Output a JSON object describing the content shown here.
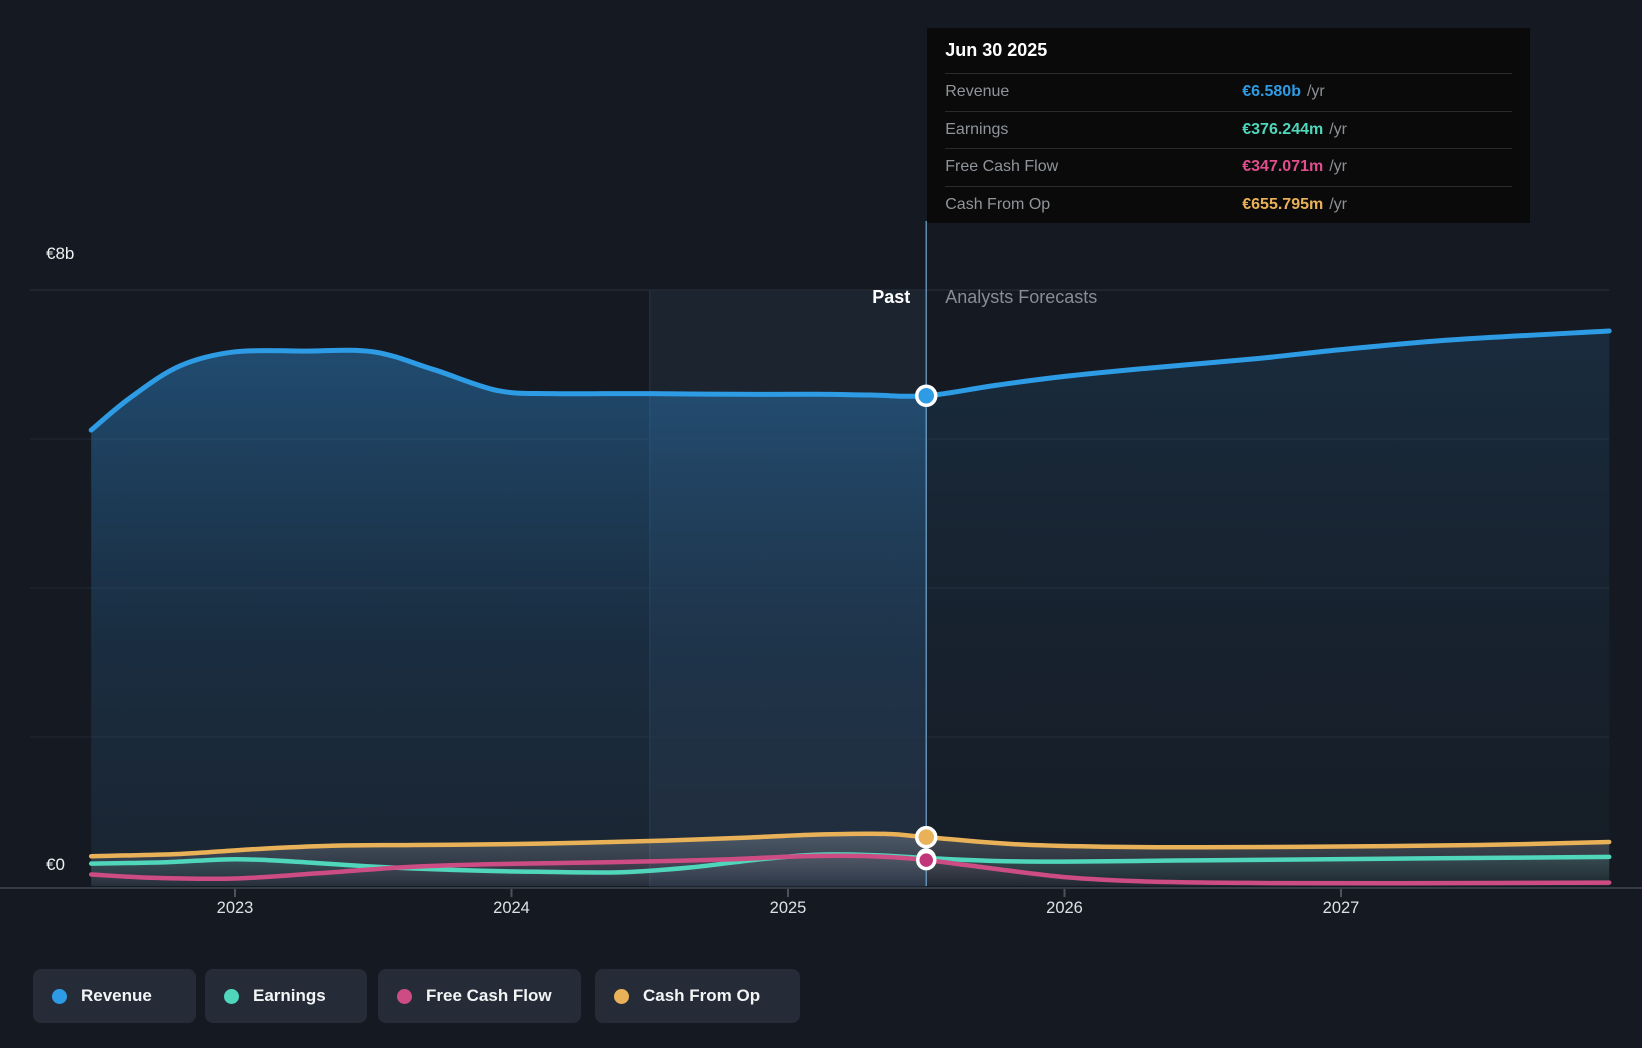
{
  "tooltip": {
    "date": "Jun 30 2025",
    "rows": [
      {
        "label": "Revenue",
        "value": "€6.580b",
        "unit": "/yr",
        "color": "#2E9BE5"
      },
      {
        "label": "Earnings",
        "value": "€376.244m",
        "unit": "/yr",
        "color": "#4FD6BB"
      },
      {
        "label": "Free Cash Flow",
        "value": "€347.071m",
        "unit": "/yr",
        "color": "#E04E8C"
      },
      {
        "label": "Cash From Op",
        "value": "€655.795m",
        "unit": "/yr",
        "color": "#EAB258"
      }
    ]
  },
  "axis": {
    "y_top_label": "€8b",
    "y_bottom_label": "€0",
    "x_ticks": [
      "2023",
      "2024",
      "2025",
      "2026",
      "2027"
    ]
  },
  "annotations": {
    "past": "Past",
    "forecast": "Analysts Forecasts"
  },
  "legend": [
    {
      "label": "Revenue",
      "color": "#2E9BE5"
    },
    {
      "label": "Earnings",
      "color": "#4FD6BB"
    },
    {
      "label": "Free Cash Flow",
      "color": "#CE4C84"
    },
    {
      "label": "Cash From Op",
      "color": "#EAB258"
    }
  ],
  "colors": {
    "background": "#151a22",
    "gridline": "#232a34",
    "axis_line": "#343c46",
    "divider": "#6f9fc7",
    "revenue": "#2E9BE5",
    "earnings": "#4FD6BB",
    "free_cash_flow": "#CE4C84",
    "cash_from_op": "#EAB258"
  },
  "chart_data": {
    "type": "area",
    "title": "",
    "x_unit": "year",
    "xlim": [
      2022.48,
      2027.97
    ],
    "ylim_eur_b": [
      0,
      8
    ],
    "y_gridlines_eur_b": [
      0,
      2,
      4,
      6,
      8
    ],
    "x_tick_years": [
      2023,
      2024,
      2025,
      2026,
      2027
    ],
    "divider_year": 2025.5,
    "divider_date": "Jun 30 2025",
    "hover_band_years": [
      2024.5,
      2025.5
    ],
    "legend_position": "bottom-left",
    "series": [
      {
        "name": "Revenue",
        "color": "#2E9BE5",
        "width": 5,
        "points": [
          [
            2022.48,
            6.12
          ],
          [
            2022.62,
            6.55
          ],
          [
            2022.8,
            6.98
          ],
          [
            2023.0,
            7.17
          ],
          [
            2023.25,
            7.18
          ],
          [
            2023.5,
            7.17
          ],
          [
            2023.72,
            6.93
          ],
          [
            2023.95,
            6.65
          ],
          [
            2024.15,
            6.61
          ],
          [
            2024.5,
            6.61
          ],
          [
            2024.8,
            6.6
          ],
          [
            2025.1,
            6.6
          ],
          [
            2025.3,
            6.59
          ],
          [
            2025.5,
            6.58
          ],
          [
            2025.75,
            6.72
          ],
          [
            2026.0,
            6.84
          ],
          [
            2026.3,
            6.95
          ],
          [
            2026.7,
            7.08
          ],
          [
            2027.0,
            7.2
          ],
          [
            2027.4,
            7.33
          ],
          [
            2027.97,
            7.45
          ]
        ]
      },
      {
        "name": "Earnings",
        "color": "#4FD6BB",
        "width": 4.5,
        "points": [
          [
            2022.48,
            0.3
          ],
          [
            2022.75,
            0.32
          ],
          [
            2023.0,
            0.36
          ],
          [
            2023.2,
            0.33
          ],
          [
            2023.5,
            0.26
          ],
          [
            2023.8,
            0.215
          ],
          [
            2024.1,
            0.19
          ],
          [
            2024.4,
            0.185
          ],
          [
            2024.65,
            0.25
          ],
          [
            2024.9,
            0.36
          ],
          [
            2025.1,
            0.42
          ],
          [
            2025.3,
            0.415
          ],
          [
            2025.5,
            0.376
          ],
          [
            2025.75,
            0.335
          ],
          [
            2026.0,
            0.328
          ],
          [
            2026.4,
            0.342
          ],
          [
            2026.8,
            0.355
          ],
          [
            2027.3,
            0.37
          ],
          [
            2027.97,
            0.39
          ]
        ]
      },
      {
        "name": "Free Cash Flow",
        "color": "#CE4C84",
        "width": 4.5,
        "points": [
          [
            2022.48,
            0.155
          ],
          [
            2022.7,
            0.11
          ],
          [
            2023.0,
            0.1
          ],
          [
            2023.3,
            0.17
          ],
          [
            2023.6,
            0.25
          ],
          [
            2023.9,
            0.29
          ],
          [
            2024.2,
            0.31
          ],
          [
            2024.5,
            0.33
          ],
          [
            2024.8,
            0.36
          ],
          [
            2025.05,
            0.4
          ],
          [
            2025.3,
            0.4
          ],
          [
            2025.5,
            0.347
          ],
          [
            2025.75,
            0.23
          ],
          [
            2026.0,
            0.12
          ],
          [
            2026.3,
            0.06
          ],
          [
            2026.7,
            0.04
          ],
          [
            2027.2,
            0.038
          ],
          [
            2027.97,
            0.045
          ]
        ]
      },
      {
        "name": "Cash From Op",
        "color": "#EAB258",
        "width": 4.5,
        "points": [
          [
            2022.48,
            0.4
          ],
          [
            2022.8,
            0.43
          ],
          [
            2023.05,
            0.49
          ],
          [
            2023.35,
            0.54
          ],
          [
            2023.65,
            0.55
          ],
          [
            2023.95,
            0.56
          ],
          [
            2024.25,
            0.58
          ],
          [
            2024.55,
            0.61
          ],
          [
            2024.85,
            0.65
          ],
          [
            2025.1,
            0.69
          ],
          [
            2025.35,
            0.7
          ],
          [
            2025.5,
            0.656
          ],
          [
            2025.8,
            0.565
          ],
          [
            2026.1,
            0.53
          ],
          [
            2026.5,
            0.52
          ],
          [
            2027.0,
            0.53
          ],
          [
            2027.5,
            0.55
          ],
          [
            2027.97,
            0.59
          ]
        ]
      }
    ],
    "markers_at_divider_eur_b": {
      "Revenue": 6.58,
      "Earnings": 0.376244,
      "Free Cash Flow": 0.347071,
      "Cash From Op": 0.655795
    }
  }
}
